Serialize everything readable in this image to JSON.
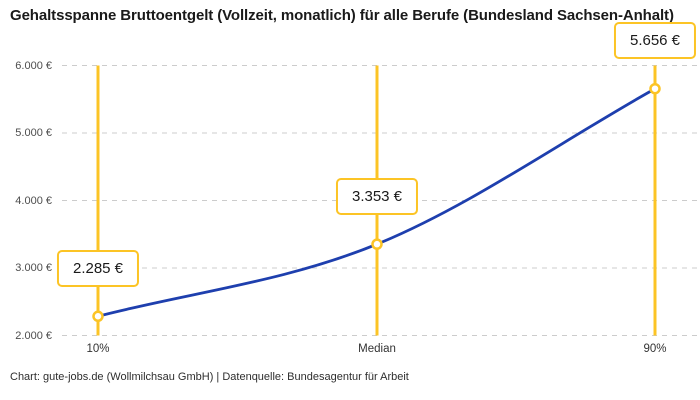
{
  "title": "Gehaltsspanne Bruttoentgelt (Vollzeit, monatlich) für alle Berufe (Bundesland Sachsen-Anhalt)",
  "footer": "Chart: gute-jobs.de (Wollmilchsau GmbH) | Datenquelle: Bundesagentur für Arbeit",
  "colors": {
    "accent": "#fcc425",
    "line": "#1e3fae",
    "grid": "#cccccc",
    "title_text": "#1a1a1a",
    "tick_text": "#4d4d4d",
    "label_text": "#1a1a1a",
    "background": "#ffffff"
  },
  "chart_data": {
    "type": "line",
    "title": "Gehaltsspanne Bruttoentgelt (Vollzeit, monatlich) für alle Berufe (Bundesland Sachsen-Anhalt)",
    "categories": [
      "10%",
      "Median",
      "90%"
    ],
    "values": [
      2285,
      3353,
      5656
    ],
    "value_labels": [
      "2.285 €",
      "3.353 €",
      "5.656 €"
    ],
    "y_ticks": [
      2000,
      3000,
      4000,
      5000,
      6000
    ],
    "y_tick_labels": [
      "2.000 €",
      "3.000 €",
      "4.000 €",
      "5.000 €",
      "6.000 €"
    ],
    "ylim": [
      2000,
      6000
    ],
    "xlabel": "",
    "ylabel": "",
    "grid": "horizontal-dashed",
    "legend": "none",
    "curve": "monotone",
    "marker": "open-circle",
    "annotation_lines": "vertical-at-each-category"
  }
}
